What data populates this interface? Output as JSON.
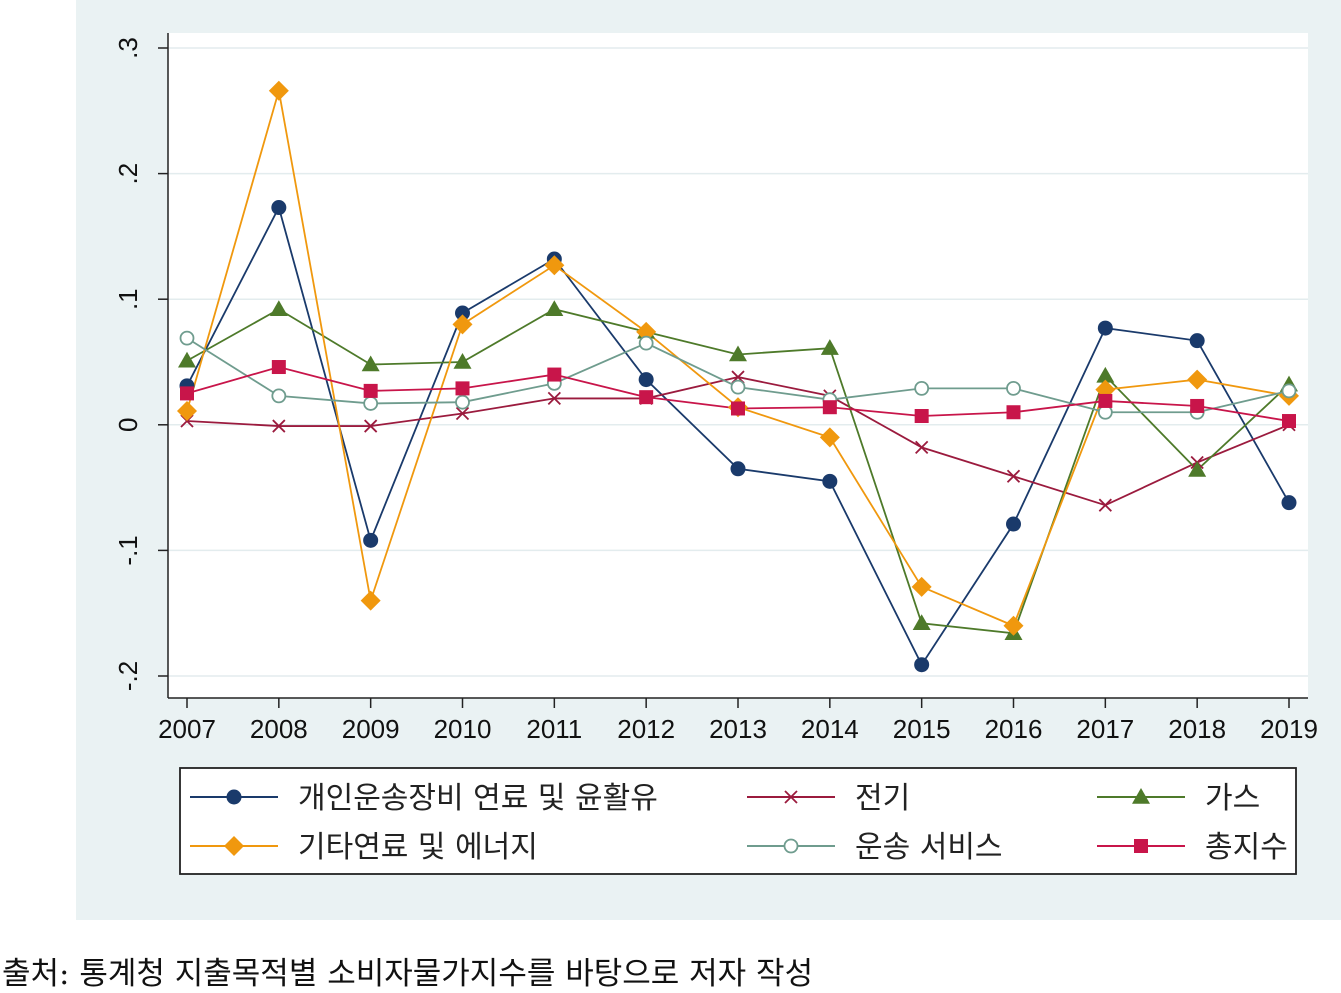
{
  "chart_data": {
    "type": "line",
    "title": "",
    "xlabel": "",
    "ylabel": "",
    "x": [
      "2007",
      "2008",
      "2009",
      "2010",
      "2011",
      "2012",
      "2013",
      "2014",
      "2015",
      "2016",
      "2017",
      "2018",
      "2019"
    ],
    "ylim": [
      -0.2,
      0.3
    ],
    "yticks": [
      -0.2,
      -0.1,
      0,
      0.1,
      0.2,
      0.3
    ],
    "ytick_labels": [
      "-.2",
      "-.1",
      "0",
      ".1",
      ".2",
      ".3"
    ],
    "grid": true,
    "legend_position": "bottom",
    "series": [
      {
        "name": "개인운송장비 연료 및 윤활유",
        "color": "#1a3a6b",
        "marker": "circle",
        "values": [
          0.031,
          0.173,
          -0.092,
          0.089,
          0.132,
          0.036,
          -0.035,
          -0.045,
          -0.191,
          -0.079,
          0.077,
          0.067,
          -0.062
        ]
      },
      {
        "name": "전기",
        "color": "#9b1b3e",
        "marker": "x",
        "values": [
          0.003,
          -0.001,
          -0.001,
          0.009,
          0.021,
          0.021,
          0.038,
          0.023,
          -0.018,
          -0.041,
          -0.064,
          -0.03,
          0.0
        ]
      },
      {
        "name": "가스",
        "color": "#4e7a2a",
        "marker": "triangle",
        "values": [
          0.051,
          0.092,
          0.048,
          0.05,
          0.092,
          0.074,
          0.056,
          0.061,
          -0.158,
          -0.166,
          0.039,
          -0.036,
          0.032
        ]
      },
      {
        "name": "기타연료 및 에너지",
        "color": "#f0980e",
        "marker": "diamond",
        "values": [
          0.011,
          0.266,
          -0.14,
          0.08,
          0.127,
          0.074,
          0.014,
          -0.01,
          -0.129,
          -0.16,
          0.028,
          0.036,
          0.023
        ]
      },
      {
        "name": "운송 서비스",
        "color": "#6f9c8e",
        "marker": "hollow-circle",
        "values": [
          0.069,
          0.023,
          0.017,
          0.018,
          0.033,
          0.065,
          0.03,
          0.02,
          0.029,
          0.029,
          0.01,
          0.01,
          0.027
        ]
      },
      {
        "name": "총지수",
        "color": "#c8154a",
        "marker": "square",
        "values": [
          0.025,
          0.046,
          0.027,
          0.029,
          0.04,
          0.022,
          0.013,
          0.014,
          0.007,
          0.01,
          0.019,
          0.015,
          0.003
        ]
      }
    ]
  },
  "source_note": "출처: 통계청 지출목적별 소비자물가지수를 바탕으로 저자 작성"
}
